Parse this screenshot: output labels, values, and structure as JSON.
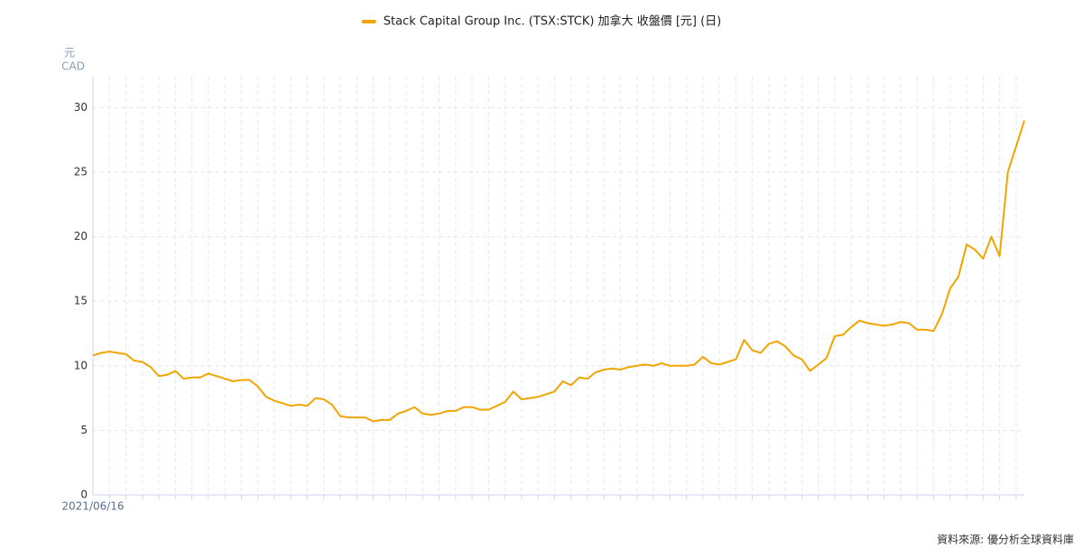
{
  "chart_data": {
    "type": "line",
    "series": [
      {
        "name": "Stack Capital Group Inc. (TSX:STCK) 加拿大 收盤價 [元] (日)",
        "color": "#f0a500",
        "values": [
          10.8,
          11.0,
          11.1,
          11.0,
          10.9,
          10.4,
          10.3,
          9.9,
          9.2,
          9.3,
          9.6,
          9.0,
          9.1,
          9.1,
          9.4,
          9.2,
          9.0,
          8.8,
          8.9,
          8.9,
          8.4,
          7.6,
          7.3,
          7.1,
          6.9,
          7.0,
          6.9,
          7.5,
          7.4,
          7.0,
          6.1,
          6.0,
          6.0,
          6.0,
          5.7,
          5.8,
          5.8,
          6.3,
          6.5,
          6.8,
          6.3,
          6.2,
          6.3,
          6.5,
          6.5,
          6.8,
          6.8,
          6.6,
          6.6,
          6.9,
          7.2,
          8.0,
          7.4,
          7.5,
          7.6,
          7.8,
          8.0,
          8.8,
          8.5,
          9.1,
          9.0,
          9.5,
          9.7,
          9.8,
          9.7,
          9.9,
          10.0,
          10.1,
          10.0,
          10.2,
          10.0,
          10.0,
          10.0,
          10.1,
          10.7,
          10.2,
          10.1,
          10.3,
          10.5,
          12.0,
          11.2,
          11.0,
          11.7,
          11.9,
          11.5,
          10.8,
          10.5,
          9.6,
          10.1,
          10.6,
          12.3,
          12.4,
          13.0,
          13.5,
          13.3,
          13.2,
          13.1,
          13.2,
          13.4,
          13.3,
          12.8,
          12.8,
          12.7,
          14.0,
          16.0,
          16.9,
          19.4,
          19.0,
          18.3,
          20.0,
          18.5,
          25.0,
          27.0,
          29.0
        ]
      }
    ],
    "categories": [
      "2021/06/16",
      null,
      null,
      null,
      null,
      null,
      null,
      null,
      null,
      null,
      null,
      null,
      null,
      null,
      null,
      null,
      null,
      null,
      null,
      null,
      null,
      null,
      null,
      null,
      null,
      null,
      null,
      null,
      null,
      null,
      null,
      null,
      null,
      null,
      null,
      null,
      null,
      null,
      null,
      null,
      null,
      null,
      null,
      null,
      null,
      null,
      null,
      null,
      null,
      null,
      null,
      null,
      null,
      null,
      null,
      null,
      null,
      null,
      null,
      null,
      null,
      null,
      null,
      null,
      null,
      null,
      null,
      null,
      null,
      null,
      null,
      null,
      null,
      null,
      null,
      null,
      null,
      null,
      null,
      null,
      null,
      null,
      null,
      null,
      null,
      null,
      null,
      null,
      null,
      null,
      null,
      null,
      null,
      null,
      null,
      null,
      null,
      null,
      null,
      null,
      null,
      null,
      null,
      null,
      null,
      null,
      null,
      null,
      null,
      null,
      null,
      null,
      null,
      null
    ],
    "y_label": "元",
    "y_unit": "CAD",
    "ylim": [
      0,
      32.4
    ],
    "yticks": [
      0,
      5,
      10,
      15,
      20,
      25,
      30
    ],
    "grid": true,
    "source": "資料來源: 優分析全球資料庫"
  }
}
